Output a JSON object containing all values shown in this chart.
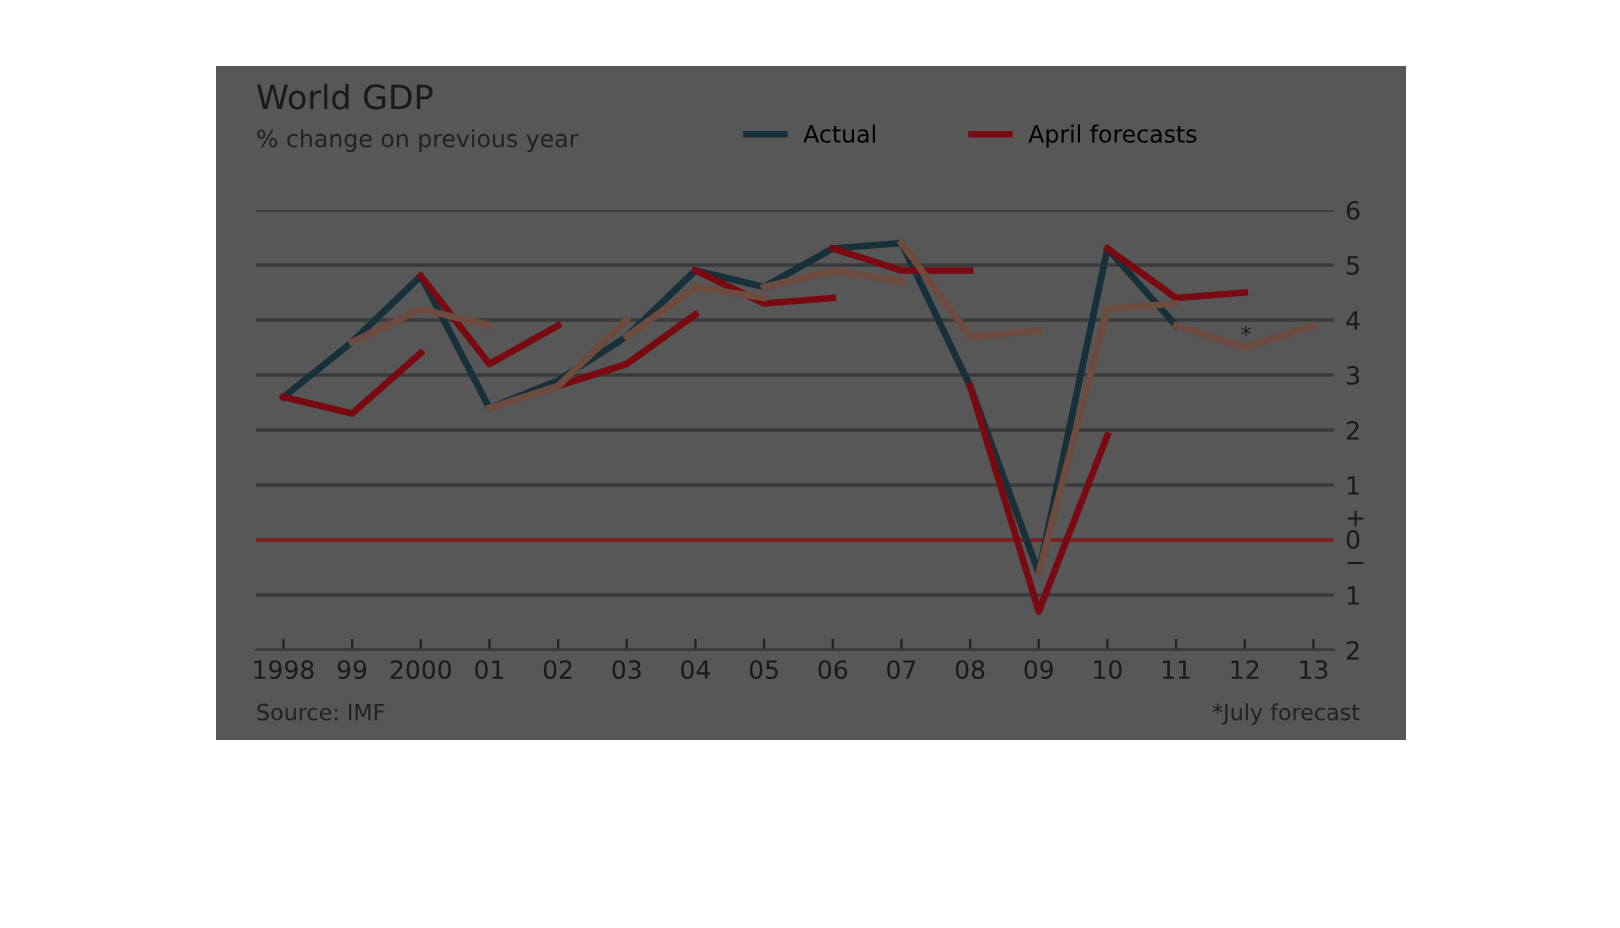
{
  "chart_data": {
    "type": "line",
    "title": "World GDP",
    "subtitle": "% change on previous year",
    "xlim": [
      1997.6,
      2013.3
    ],
    "xticks": [
      {
        "value": 1998,
        "label": "1998"
      },
      {
        "value": 1999,
        "label": "99"
      },
      {
        "value": 2000,
        "label": "2000"
      },
      {
        "value": 2001,
        "label": "01"
      },
      {
        "value": 2002,
        "label": "02"
      },
      {
        "value": 2003,
        "label": "03"
      },
      {
        "value": 2004,
        "label": "04"
      },
      {
        "value": 2005,
        "label": "05"
      },
      {
        "value": 2006,
        "label": "06"
      },
      {
        "value": 2007,
        "label": "07"
      },
      {
        "value": 2008,
        "label": "08"
      },
      {
        "value": 2009,
        "label": "09"
      },
      {
        "value": 2010,
        "label": "10"
      },
      {
        "value": 2011,
        "label": "11"
      },
      {
        "value": 2012,
        "label": "12"
      },
      {
        "value": 2013,
        "label": "13"
      }
    ],
    "ylim": [
      -2,
      6
    ],
    "yticks": [
      {
        "value": -2,
        "label": "2"
      },
      {
        "value": -1,
        "label": "1"
      },
      {
        "value": 0,
        "label": "+\n0\n−"
      },
      1,
      2,
      3,
      4,
      5,
      6
    ],
    "grid": "y",
    "legend": "top",
    "marker": "none",
    "line_style": "solid",
    "ref_lines": [
      {
        "axis": "y",
        "value": 0,
        "color": "#8b1a1a"
      }
    ],
    "series": [
      {
        "name": "Actual",
        "color": "#17303a",
        "x": [
          1998,
          1999,
          2000,
          2001,
          2002,
          2003,
          2004,
          2005,
          2006,
          2007,
          2008,
          2009,
          2010,
          2011
        ],
        "values": [
          2.6,
          3.6,
          4.8,
          2.4,
          2.9,
          3.7,
          4.9,
          4.6,
          5.3,
          5.4,
          2.8,
          -0.6,
          5.3,
          3.9
        ]
      },
      {
        "name": "April forecasts",
        "color": "#7a0a12",
        "x": [
          1998,
          1999,
          2000
        ],
        "values": [
          2.6,
          2.3,
          3.4
        ]
      },
      {
        "color": "#7a0a12",
        "x": [
          2000,
          2001,
          2002
        ],
        "values": [
          4.8,
          3.2,
          3.9
        ]
      },
      {
        "color": "#7a0a12",
        "x": [
          2002,
          2003,
          2004
        ],
        "values": [
          2.8,
          3.2,
          4.1
        ]
      },
      {
        "color": "#7a0a12",
        "x": [
          2004,
          2005,
          2006
        ],
        "values": [
          4.9,
          4.3,
          4.4
        ]
      },
      {
        "color": "#7a0a12",
        "x": [
          2006,
          2007,
          2008
        ],
        "values": [
          5.3,
          4.9,
          4.9
        ]
      },
      {
        "color": "#7a0a12",
        "x": [
          2008,
          2009,
          2010
        ],
        "values": [
          2.8,
          -1.3,
          1.9
        ]
      },
      {
        "color": "#7a0a12",
        "x": [
          2010,
          2011,
          2012
        ],
        "values": [
          5.3,
          4.4,
          4.5
        ]
      },
      {
        "color": "#6e4b3f",
        "x": [
          1999,
          2000,
          2001
        ],
        "values": [
          3.6,
          4.2,
          3.9
        ]
      },
      {
        "color": "#6e4b3f",
        "x": [
          2001,
          2002,
          2003
        ],
        "values": [
          2.4,
          2.8,
          4.0
        ]
      },
      {
        "color": "#6e4b3f",
        "x": [
          2003,
          2004,
          2005
        ],
        "values": [
          3.7,
          4.6,
          4.4
        ]
      },
      {
        "color": "#6e4b3f",
        "x": [
          2005,
          2006,
          2007
        ],
        "values": [
          4.6,
          4.9,
          4.7
        ]
      },
      {
        "color": "#6e4b3f",
        "x": [
          2007,
          2008,
          2009
        ],
        "values": [
          5.4,
          3.7,
          3.8
        ]
      },
      {
        "color": "#6e4b3f",
        "x": [
          2009,
          2010,
          2011
        ],
        "values": [
          -0.6,
          4.2,
          4.3
        ]
      },
      {
        "color": "#6e4b3f",
        "x": [
          2011,
          2012,
          2013
        ],
        "values": [
          3.9,
          3.5,
          3.9
        ]
      }
    ],
    "annotations": [
      "*July forecast",
      "Source: IMF",
      "*"
    ]
  }
}
